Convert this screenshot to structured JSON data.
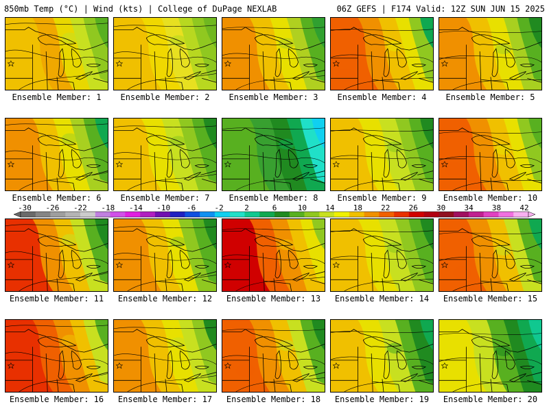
{
  "header": {
    "left_title": "850mb Temp (°C) | Wind (kts) | College of DuPage NEXLAB",
    "right_title": "06Z GEFS | F174 Valid: 12Z SUN JUN 15 2025"
  },
  "colorbar": {
    "tick_labels": [
      "-30",
      "-26",
      "-22",
      "-18",
      "-14",
      "-10",
      "-6",
      "-2",
      "2",
      "6",
      "10",
      "14",
      "18",
      "22",
      "26",
      "30",
      "34",
      "38",
      "42"
    ],
    "colors": [
      "#6a6a6a",
      "#858585",
      "#9e9e9e",
      "#b4b4b4",
      "#cccccc",
      "#c080e0",
      "#d050e8",
      "#e020e0",
      "#b020c0",
      "#7010b0",
      "#2020c0",
      "#1050e0",
      "#1090f0",
      "#10d0f0",
      "#20e0c8",
      "#10c890",
      "#10a850",
      "#208a20",
      "#58b020",
      "#90c820",
      "#c8e020",
      "#f0f000",
      "#f0c000",
      "#f09000",
      "#f06000",
      "#e83000",
      "#d00000",
      "#b00010",
      "#901020",
      "#a01060",
      "#c02090",
      "#e040c0",
      "#f070e0",
      "#f8b0f0"
    ]
  },
  "panels": [
    {
      "label": "Ensemble Member: 1",
      "colors": [
        "#f0c000",
        "#f0a800",
        "#e8d800",
        "#c8e020",
        "#90c820",
        "#58b020"
      ]
    },
    {
      "label": "Ensemble Member: 2",
      "colors": [
        "#f0c000",
        "#f0d800",
        "#e8e020",
        "#b8d820",
        "#90c820",
        "#70b820"
      ]
    },
    {
      "label": "Ensemble Member: 3",
      "colors": [
        "#f09000",
        "#f0c000",
        "#e8e000",
        "#b0d020",
        "#58b020",
        "#30a030"
      ]
    },
    {
      "label": "Ensemble Member: 4",
      "colors": [
        "#f06000",
        "#f09000",
        "#f0c000",
        "#e8e000",
        "#90c820",
        "#10a850"
      ]
    },
    {
      "label": "Ensemble Member: 5",
      "colors": [
        "#f09000",
        "#f0c000",
        "#e8e000",
        "#a8d020",
        "#58b020",
        "#208a20"
      ]
    },
    {
      "label": "Ensemble Member: 6",
      "colors": [
        "#f09000",
        "#f0c000",
        "#e8e000",
        "#a8d020",
        "#58b020",
        "#10a850"
      ]
    },
    {
      "label": "Ensemble Member: 7",
      "colors": [
        "#f0c000",
        "#e8e000",
        "#c8e020",
        "#90c820",
        "#58b020",
        "#208a20"
      ]
    },
    {
      "label": "Ensemble Member: 8",
      "colors": [
        "#58b020",
        "#38a030",
        "#208a20",
        "#10a850",
        "#20e0c8",
        "#10d0f0"
      ]
    },
    {
      "label": "Ensemble Member: 9",
      "colors": [
        "#f0c000",
        "#e8e000",
        "#c8e020",
        "#90c820",
        "#58b020",
        "#208a20"
      ]
    },
    {
      "label": "Ensemble Member: 10",
      "colors": [
        "#f06000",
        "#f09000",
        "#f0c000",
        "#e8e000",
        "#90c820",
        "#58b020"
      ]
    },
    {
      "label": "Ensemble Member: 11",
      "colors": [
        "#e83000",
        "#f09000",
        "#f0c000",
        "#c8e020",
        "#58b020",
        "#208a20"
      ]
    },
    {
      "label": "Ensemble Member: 12",
      "colors": [
        "#f09000",
        "#f0c000",
        "#e8e000",
        "#90c820",
        "#58b020",
        "#208a20"
      ]
    },
    {
      "label": "Ensemble Member: 13",
      "colors": [
        "#d00000",
        "#f06000",
        "#f09000",
        "#f0c000",
        "#e8e000",
        "#90c820"
      ]
    },
    {
      "label": "Ensemble Member: 14",
      "colors": [
        "#f0c000",
        "#e8e000",
        "#c8e020",
        "#90c820",
        "#58b020",
        "#208a20"
      ]
    },
    {
      "label": "Ensemble Member: 15",
      "colors": [
        "#f06000",
        "#f09000",
        "#f0c000",
        "#c8e020",
        "#58b020",
        "#10a850"
      ]
    },
    {
      "label": "Ensemble Member: 16",
      "colors": [
        "#e83000",
        "#f06000",
        "#f09000",
        "#f0c000",
        "#c8e020",
        "#58b020"
      ]
    },
    {
      "label": "Ensemble Member: 17",
      "colors": [
        "#f09000",
        "#f0c000",
        "#e8e000",
        "#c8e020",
        "#90c820",
        "#208a20"
      ]
    },
    {
      "label": "Ensemble Member: 18",
      "colors": [
        "#f06000",
        "#f09000",
        "#f0c000",
        "#c8e020",
        "#58b020",
        "#208a20"
      ]
    },
    {
      "label": "Ensemble Member: 19",
      "colors": [
        "#f0c000",
        "#e8e000",
        "#c8e020",
        "#58b020",
        "#208a20",
        "#10a850"
      ]
    },
    {
      "label": "Ensemble Member: 20",
      "colors": [
        "#e8e000",
        "#c8e020",
        "#58b020",
        "#208a20",
        "#10a850",
        "#10c890"
      ]
    }
  ]
}
